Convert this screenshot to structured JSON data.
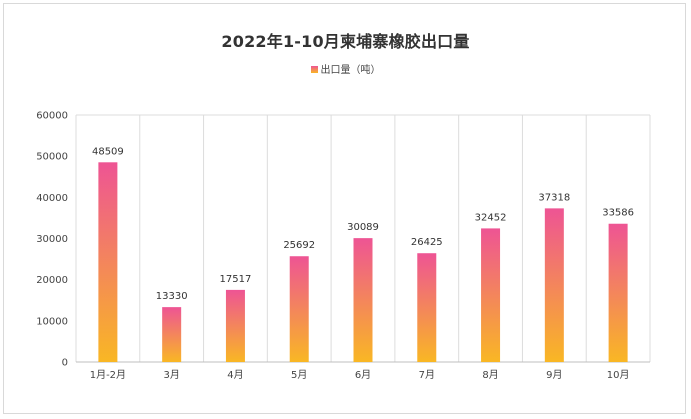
{
  "chart_data": {
    "type": "bar",
    "title": "2022年1-10月柬埔寨橡胶出口量",
    "categories": [
      "1月-2月",
      "3月",
      "4月",
      "5月",
      "6月",
      "7月",
      "8月",
      "9月",
      "10月"
    ],
    "series": [
      {
        "name": "出口量（吨）",
        "values": [
          48509,
          13330,
          17517,
          25692,
          30089,
          26425,
          32452,
          37318,
          33586
        ]
      }
    ],
    "data_labels": [
      "48509",
      "13330",
      "17517",
      "25692",
      "30089",
      "26425",
      "32452",
      "37318",
      "33586"
    ],
    "y_ticks": [
      "0",
      "10000",
      "20000",
      "30000",
      "40000",
      "50000",
      "60000"
    ],
    "ylim": [
      0,
      60000
    ],
    "legend_position": "top-center",
    "grid": "vertical lines between categories",
    "colors": {
      "bar_top": "#ee5494",
      "bar_bottom": "#f9b724",
      "grid": "#dcdcdc"
    }
  }
}
